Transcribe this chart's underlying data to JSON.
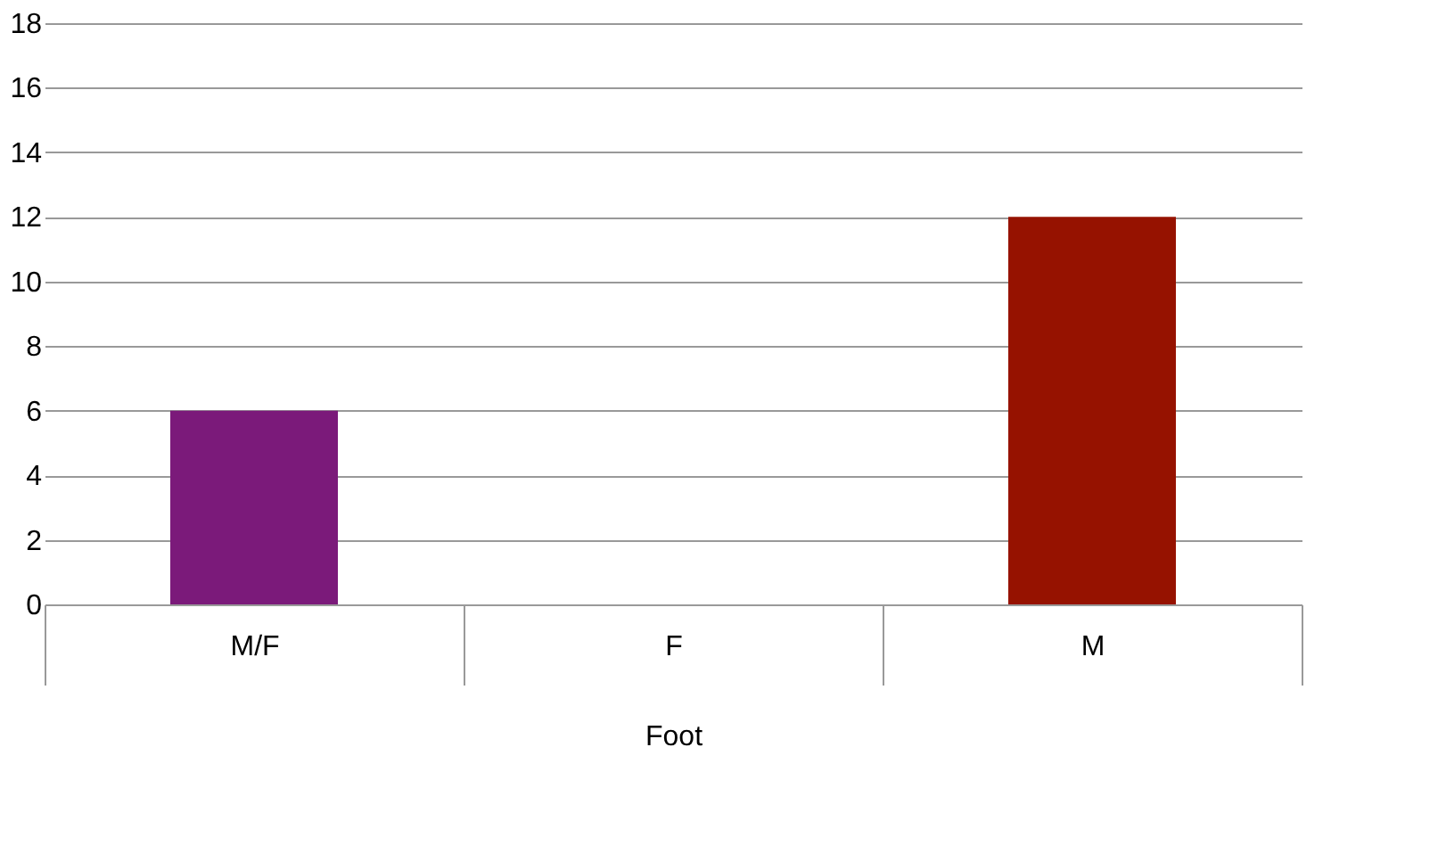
{
  "chart_data": {
    "type": "bar",
    "categories": [
      "M/F",
      "F",
      "M"
    ],
    "values": [
      6,
      0,
      12
    ],
    "colors": [
      "#7b1a7a",
      "#4f81bd",
      "#961200"
    ],
    "xlabel": "Foot",
    "ylim": [
      0,
      18
    ],
    "yticks": [
      0,
      2,
      4,
      6,
      8,
      10,
      12,
      14,
      16,
      18
    ],
    "grid": "y",
    "legend": false
  }
}
